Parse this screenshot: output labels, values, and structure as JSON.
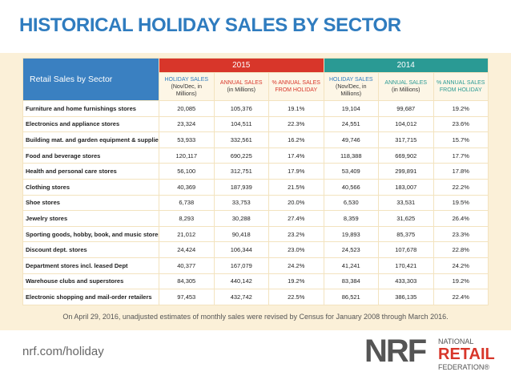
{
  "header": {
    "title": "HISTORICAL HOLIDAY SALES BY SECTOR"
  },
  "table": {
    "sector_label": "Retail Sales by Sector",
    "years": [
      "2015",
      "2014"
    ],
    "columns": [
      [
        {
          "label": "HOLIDAY SALES",
          "sublabel": "(Nov/Dec, in Millions)",
          "color": "#2f7cbf"
        },
        {
          "label": "ANNUAL SALES",
          "sublabel": "(in Millions)",
          "color": "#d8362a"
        },
        {
          "label": "% ANNUAL SALES FROM HOLIDAY",
          "color": "#d8362a"
        }
      ],
      [
        {
          "label": "HOLIDAY SALES",
          "sublabel": "(Nov/Dec, in Millions)",
          "color": "#2f7cbf"
        },
        {
          "label": "ANNUAL SALES",
          "sublabel": "(in Millions)",
          "color": "#2a9a94"
        },
        {
          "label": "% ANNUAL SALES FROM HOLIDAY",
          "color": "#2a9a94"
        }
      ]
    ],
    "rows": [
      [
        "Furniture and home furnishings stores",
        "20,085",
        "105,376",
        "19.1%",
        "19,104",
        "99,687",
        "19.2%"
      ],
      [
        "Electronics and appliance stores",
        "23,324",
        "104,511",
        "22.3%",
        "24,551",
        "104,012",
        "23.6%"
      ],
      [
        "Building mat. and garden equipment & supplies",
        "53,933",
        "332,561",
        "16.2%",
        "49,746",
        "317,715",
        "15.7%"
      ],
      [
        "Food and beverage stores",
        "120,117",
        "690,225",
        "17.4%",
        "118,388",
        "669,902",
        "17.7%"
      ],
      [
        "Health and personal care stores",
        "56,100",
        "312,751",
        "17.9%",
        "53,409",
        "299,891",
        "17.8%"
      ],
      [
        "Clothing stores",
        "40,369",
        "187,939",
        "21.5%",
        "40,566",
        "183,007",
        "22.2%"
      ],
      [
        "Shoe stores",
        "6,738",
        "33,753",
        "20.0%",
        "6,530",
        "33,531",
        "19.5%"
      ],
      [
        "Jewelry stores",
        "8,293",
        "30,288",
        "27.4%",
        "8,359",
        "31,625",
        "26.4%"
      ],
      [
        "Sporting goods, hobby, book, and music stores",
        "21,012",
        "90,418",
        "23.2%",
        "19,893",
        "85,375",
        "23.3%"
      ],
      [
        "Discount dept. stores",
        "24,424",
        "106,344",
        "23.0%",
        "24,523",
        "107,678",
        "22.8%"
      ],
      [
        "Department stores incl. leased Dept",
        "40,377",
        "167,079",
        "24.2%",
        "41,241",
        "170,421",
        "24.2%"
      ],
      [
        "Warehouse clubs and superstores",
        "84,305",
        "440,142",
        "19.2%",
        "83,384",
        "433,303",
        "19.2%"
      ],
      [
        "Electronic shopping and mail-order retailers",
        "97,453",
        "432,742",
        "22.5%",
        "86,521",
        "386,135",
        "22.4%"
      ]
    ]
  },
  "footer": {
    "note": "On April 29, 2016, unadjusted estimates of monthly sales were revised by Census for January 2008 through March 2016.",
    "url": "nrf.com/holiday",
    "logo": {
      "mark": "NRF",
      "line1": "NATIONAL",
      "line2": "RETAIL",
      "line3": "FEDERATION®"
    }
  }
}
